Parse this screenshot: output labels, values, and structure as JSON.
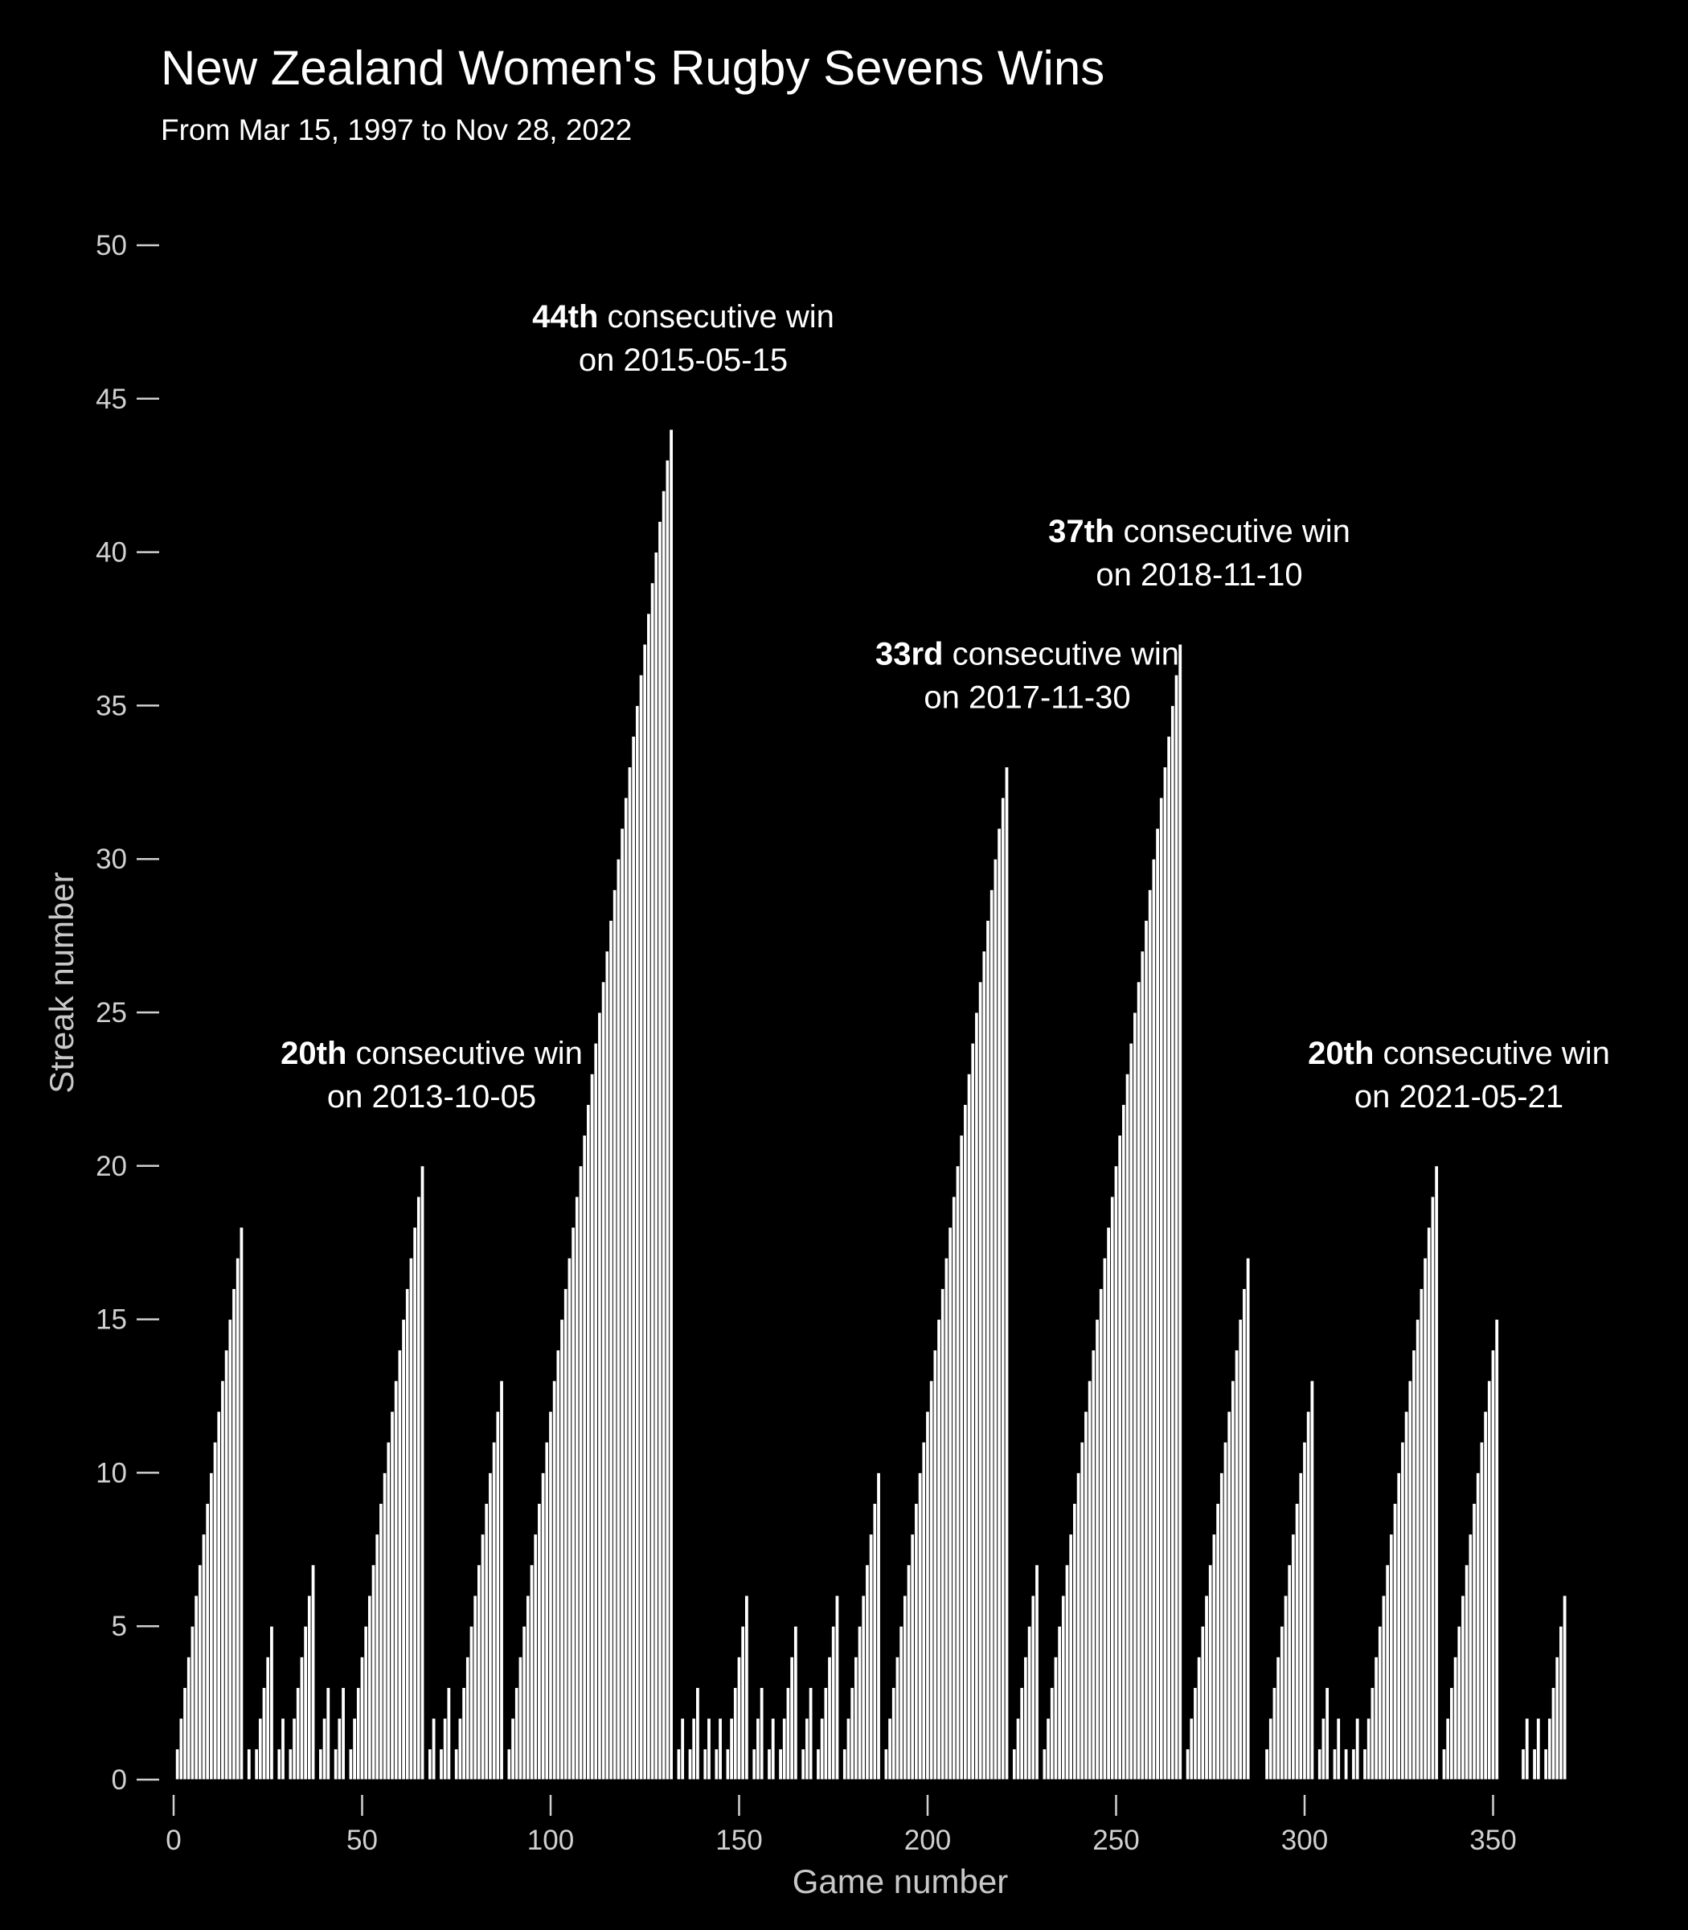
{
  "chart_data": {
    "type": "bar",
    "title": "New Zealand Women's Rugby Sevens Wins",
    "subtitle": "From Mar 15, 1997 to Nov 28, 2022",
    "xlabel": "Game number",
    "ylabel": "Streak number",
    "xlim": [
      0,
      375
    ],
    "ylim": [
      0,
      50
    ],
    "xticks": [
      0,
      50,
      100,
      150,
      200,
      250,
      300,
      350
    ],
    "yticks": [
      0,
      5,
      10,
      15,
      20,
      25,
      30,
      35,
      40,
      45,
      50
    ],
    "grid": false,
    "annotations": [
      {
        "x": 135,
        "y": 44,
        "bold": "44th",
        "text": " consecutive win",
        "line2": "on 2015-05-15"
      },
      {
        "x": 69,
        "y": 20,
        "bold": "20th",
        "text": " consecutive win",
        "line2": "on 2013-10-05"
      },
      {
        "x": 226,
        "y": 33,
        "bold": "33rd",
        "text": " consecutive win",
        "line2": "on 2017-11-30"
      },
      {
        "x": 272,
        "y": 37,
        "bold": "37th",
        "text": " consecutive win",
        "line2": "on 2018-11-10"
      },
      {
        "x": 341,
        "y": 20,
        "bold": "20th",
        "text": " consecutive win",
        "line2": "on 2021-05-21"
      }
    ],
    "x_start": 1,
    "streak": [
      1,
      2,
      3,
      4,
      5,
      6,
      7,
      8,
      9,
      10,
      11,
      12,
      13,
      14,
      15,
      16,
      17,
      18,
      0,
      1,
      0,
      1,
      2,
      3,
      4,
      5,
      0,
      1,
      2,
      0,
      1,
      2,
      3,
      4,
      5,
      6,
      7,
      0,
      1,
      2,
      3,
      0,
      1,
      2,
      3,
      0,
      1,
      2,
      3,
      4,
      5,
      6,
      7,
      8,
      9,
      10,
      11,
      12,
      13,
      14,
      15,
      16,
      17,
      18,
      19,
      20,
      0,
      1,
      2,
      0,
      1,
      2,
      3,
      0,
      1,
      2,
      3,
      4,
      5,
      6,
      7,
      8,
      9,
      10,
      11,
      12,
      13,
      0,
      1,
      2,
      3,
      4,
      5,
      6,
      7,
      8,
      9,
      10,
      11,
      12,
      13,
      14,
      15,
      16,
      17,
      18,
      19,
      20,
      21,
      22,
      23,
      24,
      25,
      26,
      27,
      28,
      29,
      30,
      31,
      32,
      33,
      34,
      35,
      36,
      37,
      38,
      39,
      40,
      41,
      42,
      43,
      44,
      0,
      1,
      2,
      0,
      1,
      2,
      3,
      0,
      1,
      2,
      0,
      1,
      2,
      0,
      1,
      2,
      3,
      4,
      5,
      6,
      0,
      1,
      2,
      3,
      0,
      1,
      2,
      0,
      1,
      2,
      3,
      4,
      5,
      0,
      1,
      2,
      3,
      0,
      1,
      2,
      3,
      4,
      5,
      6,
      0,
      1,
      2,
      3,
      4,
      5,
      6,
      7,
      8,
      9,
      10,
      0,
      1,
      2,
      3,
      4,
      5,
      6,
      7,
      8,
      9,
      10,
      11,
      12,
      13,
      14,
      15,
      16,
      17,
      18,
      19,
      20,
      21,
      22,
      23,
      24,
      25,
      26,
      27,
      28,
      29,
      30,
      31,
      32,
      33,
      0,
      1,
      2,
      3,
      4,
      5,
      6,
      7,
      0,
      1,
      2,
      3,
      4,
      5,
      6,
      7,
      8,
      9,
      10,
      11,
      12,
      13,
      14,
      15,
      16,
      17,
      18,
      19,
      20,
      21,
      22,
      23,
      24,
      25,
      26,
      27,
      28,
      29,
      30,
      31,
      32,
      33,
      34,
      35,
      36,
      37,
      0,
      1,
      2,
      3,
      4,
      5,
      6,
      7,
      8,
      9,
      10,
      11,
      12,
      13,
      14,
      15,
      16,
      17,
      0,
      0,
      0,
      0,
      1,
      2,
      3,
      4,
      5,
      6,
      7,
      8,
      9,
      10,
      11,
      12,
      13,
      0,
      1,
      2,
      3,
      0,
      1,
      2,
      0,
      1,
      0,
      1,
      2,
      0,
      1,
      2,
      3,
      4,
      5,
      6,
      7,
      8,
      9,
      10,
      11,
      12,
      13,
      14,
      15,
      16,
      17,
      18,
      19,
      20,
      0,
      1,
      2,
      3,
      4,
      5,
      6,
      7,
      8,
      9,
      10,
      11,
      12,
      13,
      14,
      15,
      0,
      0,
      0,
      0,
      0,
      0,
      1,
      2,
      0,
      1,
      2,
      0,
      1,
      2,
      3,
      4,
      5,
      6
    ]
  }
}
